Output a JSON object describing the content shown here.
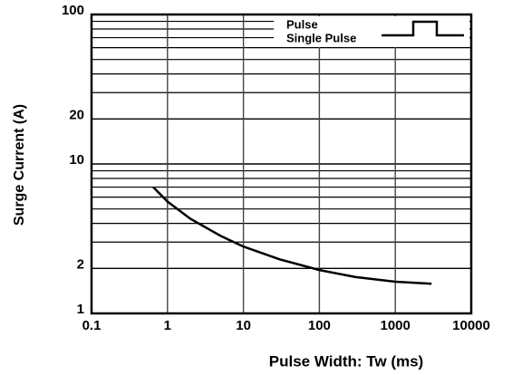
{
  "chart_data": {
    "type": "line",
    "x_label": "Pulse Width: Tw (ms)",
    "y_label": "Surge Current (A)",
    "legend_title": "Pulse",
    "series": [
      {
        "name": "Single Pulse",
        "color": "#000000",
        "x": [
          0.65,
          1,
          2,
          5,
          10,
          30,
          100,
          300,
          1000,
          3000
        ],
        "values": [
          7.0,
          5.6,
          4.3,
          3.3,
          2.8,
          2.3,
          1.95,
          1.75,
          1.63,
          1.58
        ]
      }
    ],
    "x_log": true,
    "y_log": true,
    "xlim": [
      0.1,
      10000
    ],
    "xticks": [
      0.1,
      1,
      10,
      100,
      1000,
      10000
    ],
    "ylim": [
      1,
      100
    ],
    "yticks": [
      1,
      2,
      10,
      20,
      100
    ],
    "y_minor_ticks": [
      3,
      4,
      5,
      6,
      7,
      8,
      9,
      30,
      40,
      50,
      60,
      70,
      80,
      90
    ],
    "grid": true
  }
}
